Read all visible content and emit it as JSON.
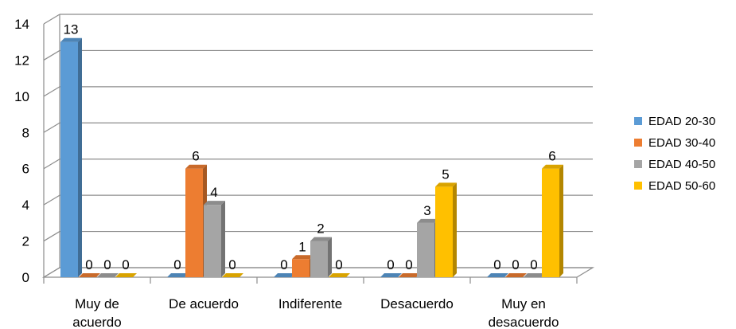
{
  "chart_data": {
    "type": "bar",
    "categories": [
      [
        "Muy de",
        "acuerdo"
      ],
      [
        "De acuerdo"
      ],
      [
        "Indiferente"
      ],
      [
        "Desacuerdo"
      ],
      [
        "Muy en",
        "desacuerdo"
      ]
    ],
    "series": [
      {
        "name": "EDAD 20-30",
        "color": "#5B9BD5",
        "values": [
          13,
          0,
          0,
          0,
          0
        ]
      },
      {
        "name": "EDAD 30-40",
        "color": "#ED7D31",
        "values": [
          0,
          6,
          1,
          0,
          0
        ]
      },
      {
        "name": "EDAD 40-50",
        "color": "#A5A5A5",
        "values": [
          0,
          4,
          2,
          3,
          0
        ]
      },
      {
        "name": "EDAD 50-60",
        "color": "#FFC000",
        "values": [
          0,
          0,
          0,
          5,
          6
        ]
      }
    ],
    "ylim": [
      0,
      14
    ],
    "yticks": [
      0,
      2,
      4,
      6,
      8,
      10,
      12,
      14
    ],
    "legend_position": "right",
    "grid": true
  }
}
